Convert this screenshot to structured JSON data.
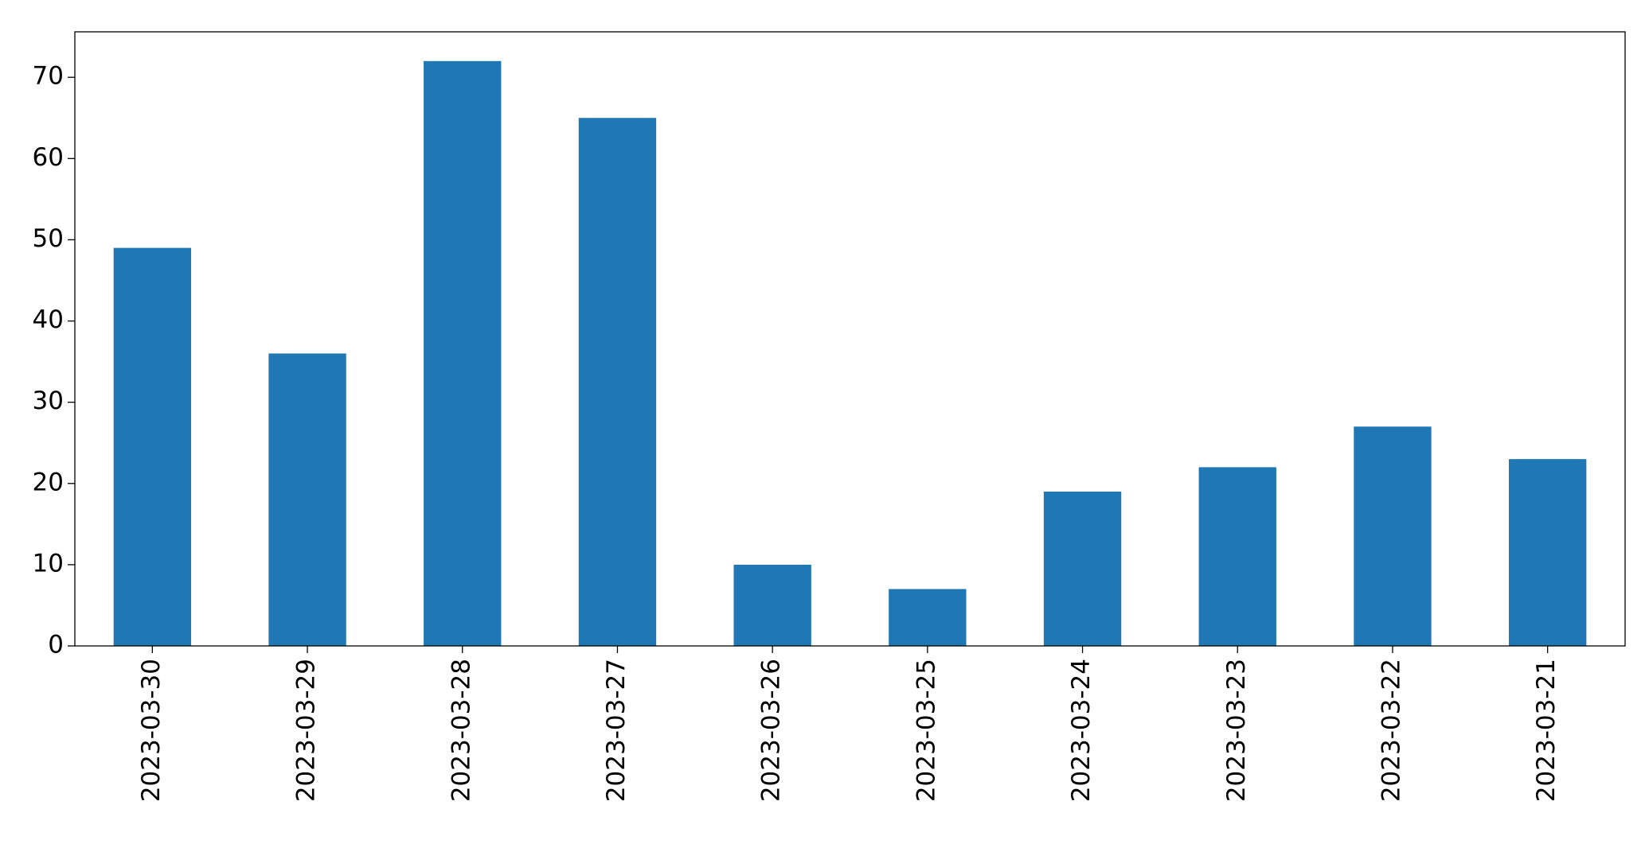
{
  "chart_data": {
    "type": "bar",
    "categories": [
      "2023-03-30",
      "2023-03-29",
      "2023-03-28",
      "2023-03-27",
      "2023-03-26",
      "2023-03-25",
      "2023-03-24",
      "2023-03-23",
      "2023-03-22",
      "2023-03-21"
    ],
    "values": [
      49,
      36,
      72,
      65,
      10,
      7,
      19,
      22,
      27,
      23
    ],
    "color": "#1f77b4",
    "ylim": [
      0,
      75.6
    ],
    "yticks": [
      0,
      10,
      20,
      30,
      40,
      50,
      60,
      70
    ],
    "grid": false
  }
}
